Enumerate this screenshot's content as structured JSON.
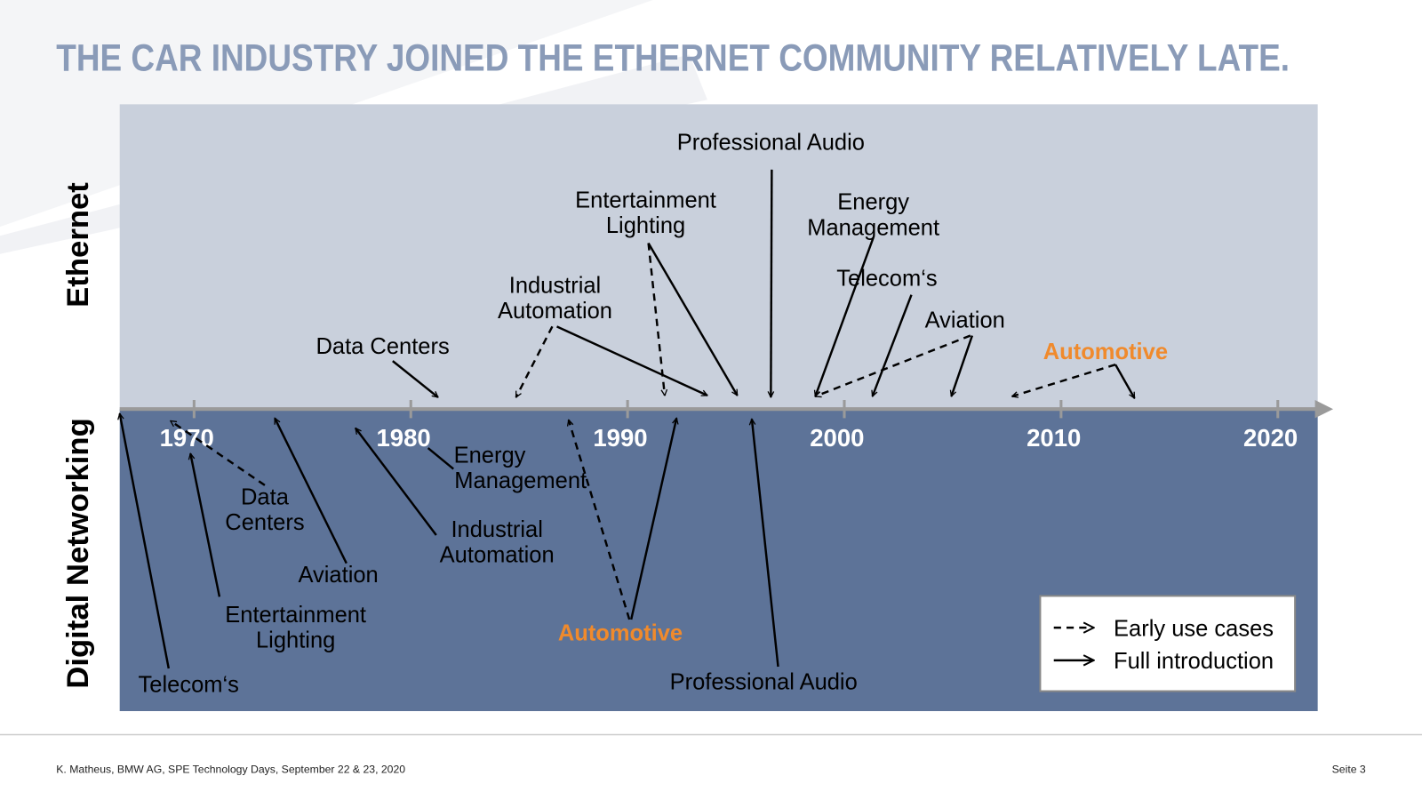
{
  "title": "THE CAR INDUSTRY JOINED THE ETHERNET COMMUNITY RELATIVELY  LATE.",
  "bands": {
    "upper": "Ethernet",
    "lower": "Digital Networking"
  },
  "timeline": {
    "ticks": [
      "1970",
      "1980",
      "1990",
      "2000",
      "2010",
      "2020"
    ]
  },
  "upper_labels": [
    {
      "lines": [
        "Professional Audio"
      ]
    },
    {
      "lines": [
        "Entertainment",
        "Lighting"
      ]
    },
    {
      "lines": [
        "Energy",
        "Management"
      ]
    },
    {
      "lines": [
        "Telecom‘s"
      ]
    },
    {
      "lines": [
        "Industrial",
        "Automation"
      ]
    },
    {
      "lines": [
        "Data Centers"
      ]
    },
    {
      "lines": [
        "Aviation"
      ]
    },
    {
      "lines": [
        "Automotive"
      ]
    }
  ],
  "lower_labels": [
    {
      "lines": [
        "Telecom‘s"
      ]
    },
    {
      "lines": [
        "Entertainment",
        "Lighting"
      ]
    },
    {
      "lines": [
        "Data",
        "Centers"
      ]
    },
    {
      "lines": [
        "Aviation"
      ]
    },
    {
      "lines": [
        "Industrial",
        "Automation"
      ]
    },
    {
      "lines": [
        "Energy",
        "Management"
      ]
    },
    {
      "lines": [
        "Automotive"
      ]
    },
    {
      "lines": [
        "Professional Audio"
      ]
    }
  ],
  "legend": {
    "dashed": "Early use cases",
    "solid": "Full introduction"
  },
  "footer": {
    "source": "K. Matheus, BMW AG, SPE Technology Days, September 22 & 23, 2020",
    "page": "Seite 3"
  }
}
